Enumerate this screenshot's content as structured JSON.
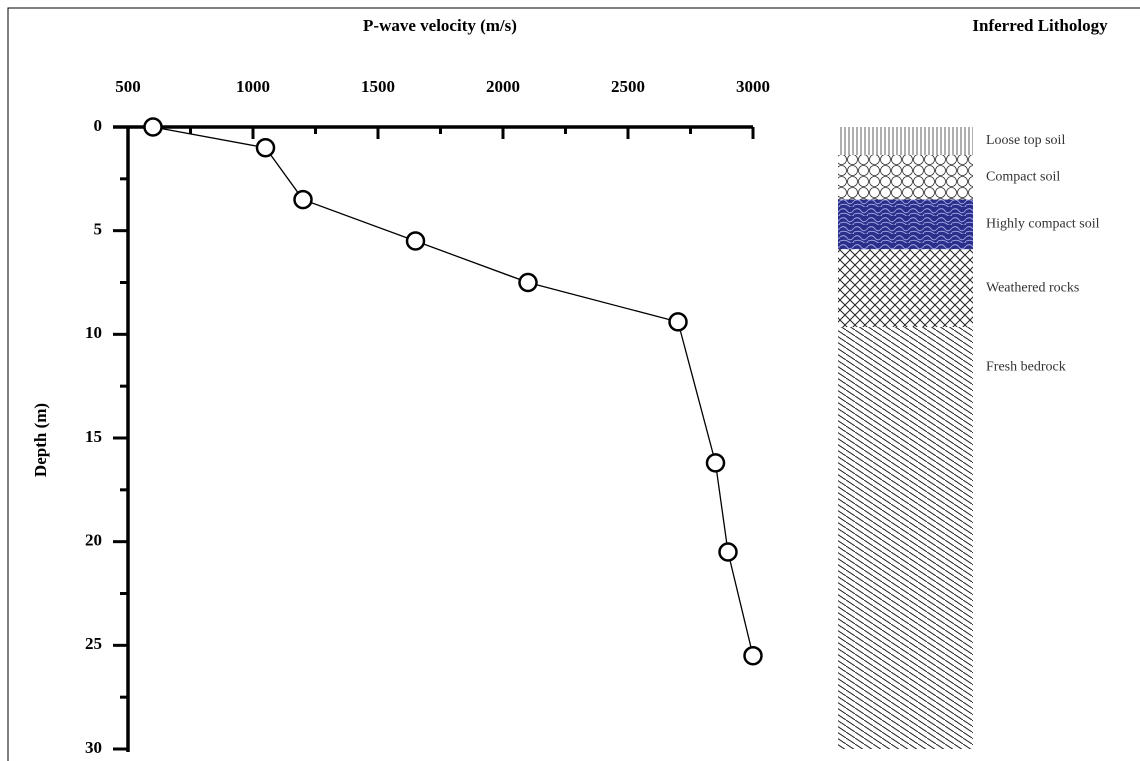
{
  "chart_data": {
    "type": "line",
    "x_label": "P-wave velocity (m/s)",
    "y_label": "Depth (m)",
    "x": [
      600,
      1050,
      1200,
      1650,
      2100,
      2700,
      2850,
      2900,
      3000
    ],
    "values": [
      0,
      1,
      3.5,
      5.5,
      7.5,
      9.4,
      16.2,
      20.5,
      25.5
    ],
    "color": "#000000",
    "marker": "circle",
    "xlim": [
      500,
      3000
    ],
    "xticks": [
      500,
      1000,
      1500,
      2000,
      2500,
      3000
    ],
    "xminorticks": [
      750,
      1250,
      1750,
      2250,
      2750
    ],
    "ylim": [
      0,
      30
    ],
    "yticks": [
      0,
      5,
      10,
      15,
      20,
      25,
      30
    ],
    "yminorticks": [
      2.5,
      7.5,
      12.5,
      17.5,
      22.5,
      27.5
    ],
    "y_inverted": true,
    "x_axis_position": "top",
    "lithology_title": "Inferred Lithology",
    "lithology": [
      {
        "name": "Loose top soil",
        "top": 0,
        "bottom": 1.35
      },
      {
        "name": "Compact soil",
        "top": 1.35,
        "bottom": 3.5
      },
      {
        "name": "Highly compact soil",
        "top": 3.5,
        "bottom": 5.9
      },
      {
        "name": "Weathered rocks",
        "top": 5.9,
        "bottom": 9.65
      },
      {
        "name": "Fresh bedrock",
        "top": 9.65,
        "bottom": 30
      }
    ]
  }
}
